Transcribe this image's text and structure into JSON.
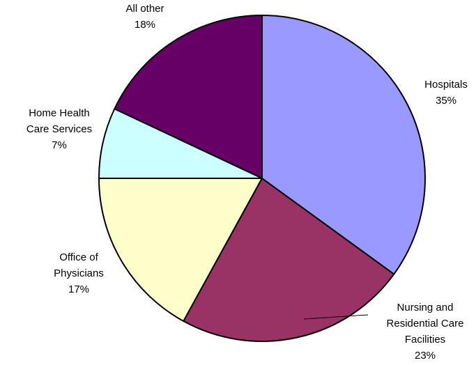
{
  "chart_data": {
    "type": "pie",
    "categories": [
      "Hospitals",
      "Nursing and Residential Care Facilities",
      "Office of Physicians",
      "Home Health Care Services",
      "All other"
    ],
    "values": [
      35,
      23,
      17,
      7,
      18
    ],
    "value_labels": [
      "35%",
      "23%",
      "17%",
      "7%",
      "18%"
    ],
    "colors": [
      "#9999ff",
      "#993366",
      "#ffffcc",
      "#ccffff",
      "#660066"
    ]
  }
}
